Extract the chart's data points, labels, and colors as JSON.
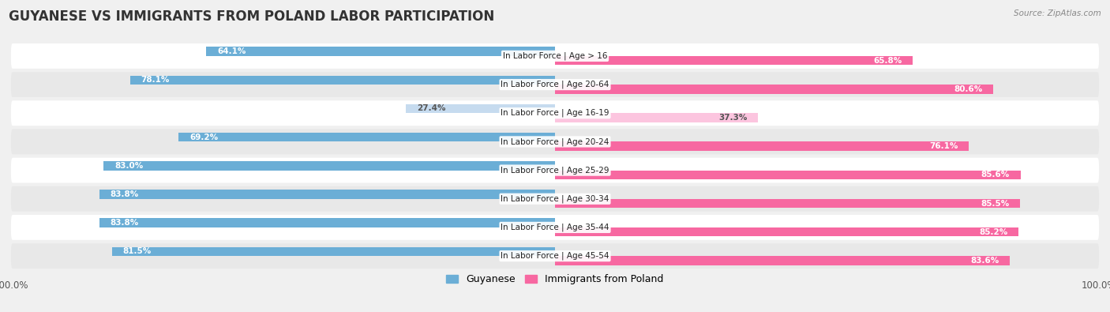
{
  "title": "GUYANESE VS IMMIGRANTS FROM POLAND LABOR PARTICIPATION",
  "source": "Source: ZipAtlas.com",
  "categories": [
    "In Labor Force | Age > 16",
    "In Labor Force | Age 20-64",
    "In Labor Force | Age 16-19",
    "In Labor Force | Age 20-24",
    "In Labor Force | Age 25-29",
    "In Labor Force | Age 30-34",
    "In Labor Force | Age 35-44",
    "In Labor Force | Age 45-54"
  ],
  "guyanese_values": [
    64.1,
    78.1,
    27.4,
    69.2,
    83.0,
    83.8,
    83.8,
    81.5
  ],
  "poland_values": [
    65.8,
    80.6,
    37.3,
    76.1,
    85.6,
    85.5,
    85.2,
    83.6
  ],
  "guyanese_color": "#6BAED6",
  "poland_color": "#F768A1",
  "guyanese_light_color": "#C6DBEF",
  "poland_light_color": "#FCC5DF",
  "background_color": "#f0f0f0",
  "row_bg_even": "#e8e8e8",
  "row_bg_odd": "#ffffff",
  "title_fontsize": 12,
  "label_fontsize": 7.5,
  "value_fontsize": 7.5,
  "legend_fontsize": 9,
  "bar_height": 0.32,
  "legend_labels": [
    "Guyanese",
    "Immigrants from Poland"
  ]
}
